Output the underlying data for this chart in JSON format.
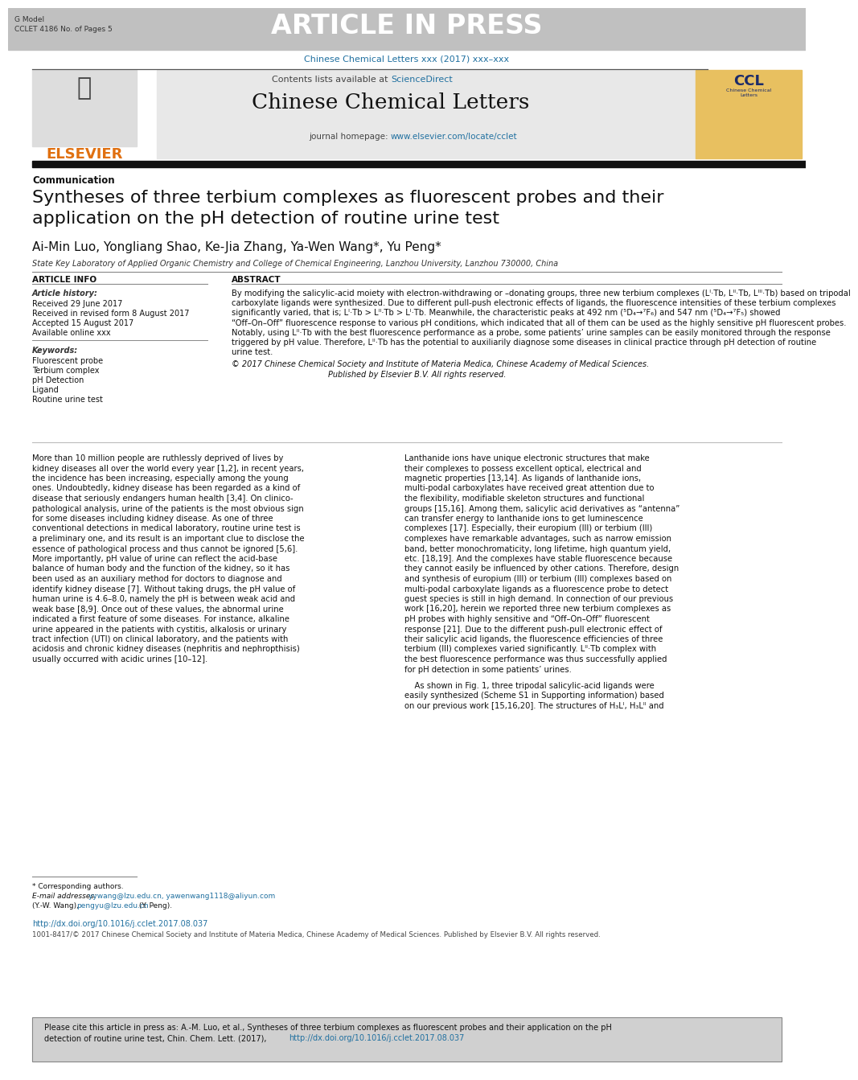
{
  "header_bg": "#c0c0c0",
  "header_text": "ARTICLE IN PRESS",
  "header_left_line1": "G Model",
  "header_left_line2": "CCLET 4186 No. of Pages 5",
  "journal_url_text": "Chinese Chemical Letters xxx (2017) xxx–xxx",
  "journal_name": "Chinese Chemical Letters",
  "contents_text": "Contents lists available at ",
  "sciencedirect_text": "ScienceDirect",
  "homepage_label": "journal homepage: ",
  "homepage_url": "www.elsevier.com/locate/cclet",
  "elsevier_text": "ELSEVIER",
  "section_label": "Communication",
  "article_title_line1": "Syntheses of three terbium complexes as fluorescent probes and their",
  "article_title_line2": "application on the pH detection of routine urine test",
  "authors_line": "Ai-Min Luo, Yongliang Shao, Ke-Jia Zhang, Ya-Wen Wang*, Yu Peng*",
  "affiliation": "State Key Laboratory of Applied Organic Chemistry and College of Chemical Engineering, Lanzhou University, Lanzhou 730000, China",
  "article_info_title": "ARTICLE INFO",
  "history_title": "Article history:",
  "received": "Received 29 June 2017",
  "revised": "Received in revised form 8 August 2017",
  "accepted": "Accepted 15 August 2017",
  "available": "Available online xxx",
  "keywords_title": "Keywords:",
  "keywords": [
    "Fluorescent probe",
    "Terbium complex",
    "pH Detection",
    "Ligand",
    "Routine urine test"
  ],
  "abstract_title": "ABSTRACT",
  "abstract_lines": [
    "By modifying the salicylic-acid moiety with electron-withdrawing or –donating groups, three new terbium complexes (Lᴵ·Tb, Lᴵᴵ·Tb, Lᴵᴵᴵ·Tb) based on tripodal",
    "carboxylate ligands were synthesized. Due to different pull-push electronic effects of ligands, the fluorescence intensities of these terbium complexes",
    "significantly varied, that is; Lᴵ·Tb > Lᴵᴵ·Tb > Lᴵ·Tb. Meanwhile, the characteristic peaks at 492 nm (⁵D₄→⁷F₆) and 547 nm (⁵D₄→⁷F₅) showed",
    "“Off–On–Off” fluorescence response to various pH conditions, which indicated that all of them can be used as the highly sensitive pH fluorescent probes.",
    "Notably, using Lᴵᴵ·Tb with the best fluorescence performance as a probe, some patients’ urine samples can be easily monitored through the response",
    "triggered by pH value. Therefore, Lᴵᴵ·Tb has the potential to auxiliarily diagnose some diseases in clinical practice through pH detection of routine",
    "urine test."
  ],
  "copyright1": "© 2017 Chinese Chemical Society and Institute of Materia Medica, Chinese Academy of Medical Sciences.",
  "copyright2": "Published by Elsevier B.V. All rights reserved.",
  "body1_lines": [
    "More than 10 million people are ruthlessly deprived of lives by",
    "kidney diseases all over the world every year [1,2], in recent years,",
    "the incidence has been increasing, especially among the young",
    "ones. Undoubtedly, kidney disease has been regarded as a kind of",
    "disease that seriously endangers human health [3,4]. On clinico-",
    "pathological analysis, urine of the patients is the most obvious sign",
    "for some diseases including kidney disease. As one of three",
    "conventional detections in medical laboratory, routine urine test is",
    "a preliminary one, and its result is an important clue to disclose the",
    "essence of pathological process and thus cannot be ignored [5,6].",
    "More importantly, pH value of urine can reflect the acid-base",
    "balance of human body and the function of the kidney, so it has",
    "been used as an auxiliary method for doctors to diagnose and",
    "identify kidney disease [7]. Without taking drugs, the pH value of",
    "human urine is 4.6–8.0, namely the pH is between weak acid and",
    "weak base [8,9]. Once out of these values, the abnormal urine",
    "indicated a first feature of some diseases. For instance, alkaline",
    "urine appeared in the patients with cystitis, alkalosis or urinary",
    "tract infection (UTI) on clinical laboratory, and the patients with",
    "acidosis and chronic kidney diseases (nephritis and nephropthisis)",
    "usually occurred with acidic urines [10–12]."
  ],
  "body2_lines": [
    "Lanthanide ions have unique electronic structures that make",
    "their complexes to possess excellent optical, electrical and",
    "magnetic properties [13,14]. As ligands of lanthanide ions,",
    "multi-podal carboxylates have received great attention due to",
    "the flexibility, modifiable skeleton structures and functional",
    "groups [15,16]. Among them, salicylic acid derivatives as “antenna”",
    "can transfer energy to lanthanide ions to get luminescence",
    "complexes [17]. Especially, their europium (III) or terbium (III)",
    "complexes have remarkable advantages, such as narrow emission",
    "band, better monochromaticity, long lifetime, high quantum yield,",
    "etc. [18,19]. And the complexes have stable fluorescence because",
    "they cannot easily be influenced by other cations. Therefore, design",
    "and synthesis of europium (III) or terbium (III) complexes based on",
    "multi-podal carboxylate ligands as a fluorescence probe to detect",
    "guest species is still in high demand. In connection of our previous",
    "work [16,20], herein we reported three new terbium complexes as",
    "pH probes with highly sensitive and “Off–On–Off” fluorescent",
    "response [21]. Due to the different push-pull electronic effect of",
    "their salicylic acid ligands, the fluorescence efficiencies of three",
    "terbium (III) complexes varied significantly. Lᴵᴵ·Tb complex with",
    "the best fluorescence performance was thus successfully applied",
    "for pH detection in some patients’ urines."
  ],
  "body2b_lines": [
    "    As shown in Fig. 1, three tripodal salicylic-acid ligands were",
    "easily synthesized (Scheme S1 in Supporting information) based",
    "on our previous work [15,16,20]. The structures of H₃Lᴵ, H₃Lᴵᴵ and"
  ],
  "footnote_line": "* Corresponding authors.",
  "email_label": "E-mail addresses: ",
  "email_addr1": "yywang@lzu.edu.cn, yawenwang1118@aliyun.com",
  "email_addr2": "(Y.-W. Wang), ",
  "email_addr3": "pengyu@lzu.edu.cn",
  "email_addr4": " (Y. Peng).",
  "doi_text": "http://dx.doi.org/10.1016/j.cclet.2017.08.037",
  "issn_text": "1001-8417/© 2017 Chinese Chemical Society and Institute of Materia Medica, Chinese Academy of Medical Sciences. Published by Elsevier B.V. All rights reserved.",
  "footer_line1": "Please cite this article in press as: A.-M. Luo, et al., Syntheses of three terbium complexes as fluorescent probes and their application on the pH",
  "footer_line2a": "detection of routine urine test, Chin. Chem. Lett. (2017), ",
  "footer_link": "http://dx.doi.org/10.1016/j.cclet.2017.08.037",
  "color_blue": "#2070a0",
  "color_orange": "#e07010",
  "color_header_gray": "#c0c0c0",
  "color_box_gray": "#e8e8e8",
  "color_footer_gray": "#d0d0d0",
  "color_black": "#111111",
  "color_darkgray": "#444444",
  "bg_white": "#ffffff"
}
